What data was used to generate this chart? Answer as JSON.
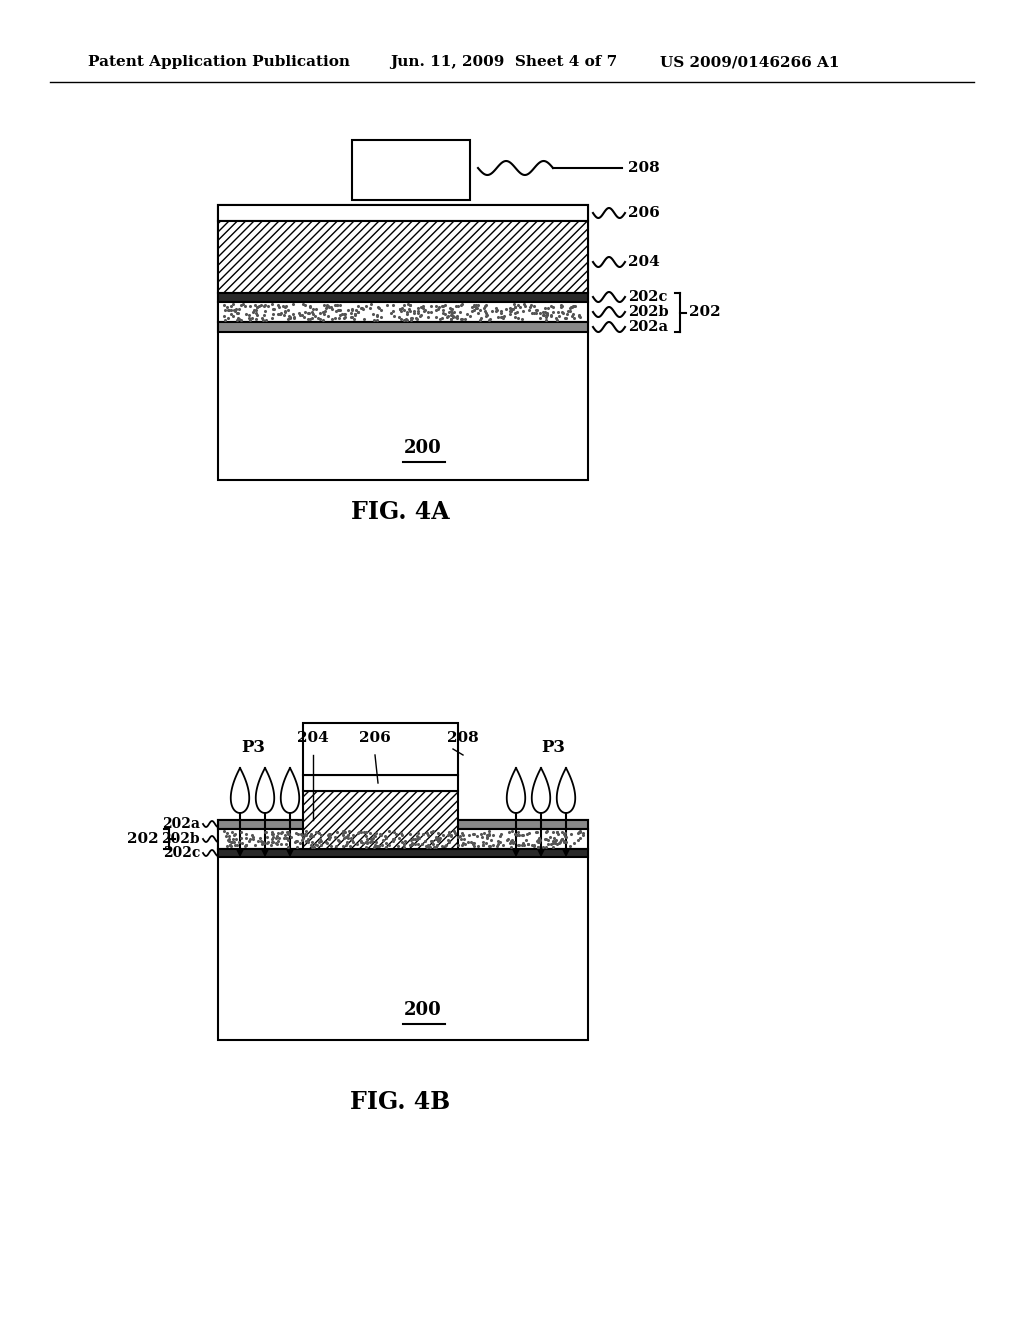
{
  "bg_color": "#ffffff",
  "line_color": "#000000",
  "header_text": "Patent Application Publication",
  "header_date": "Jun. 11, 2009  Sheet 4 of 7",
  "header_patent": "US 2009/0146266 A1",
  "fig4a_label": "FIG. 4A",
  "fig4b_label": "FIG. 4B"
}
